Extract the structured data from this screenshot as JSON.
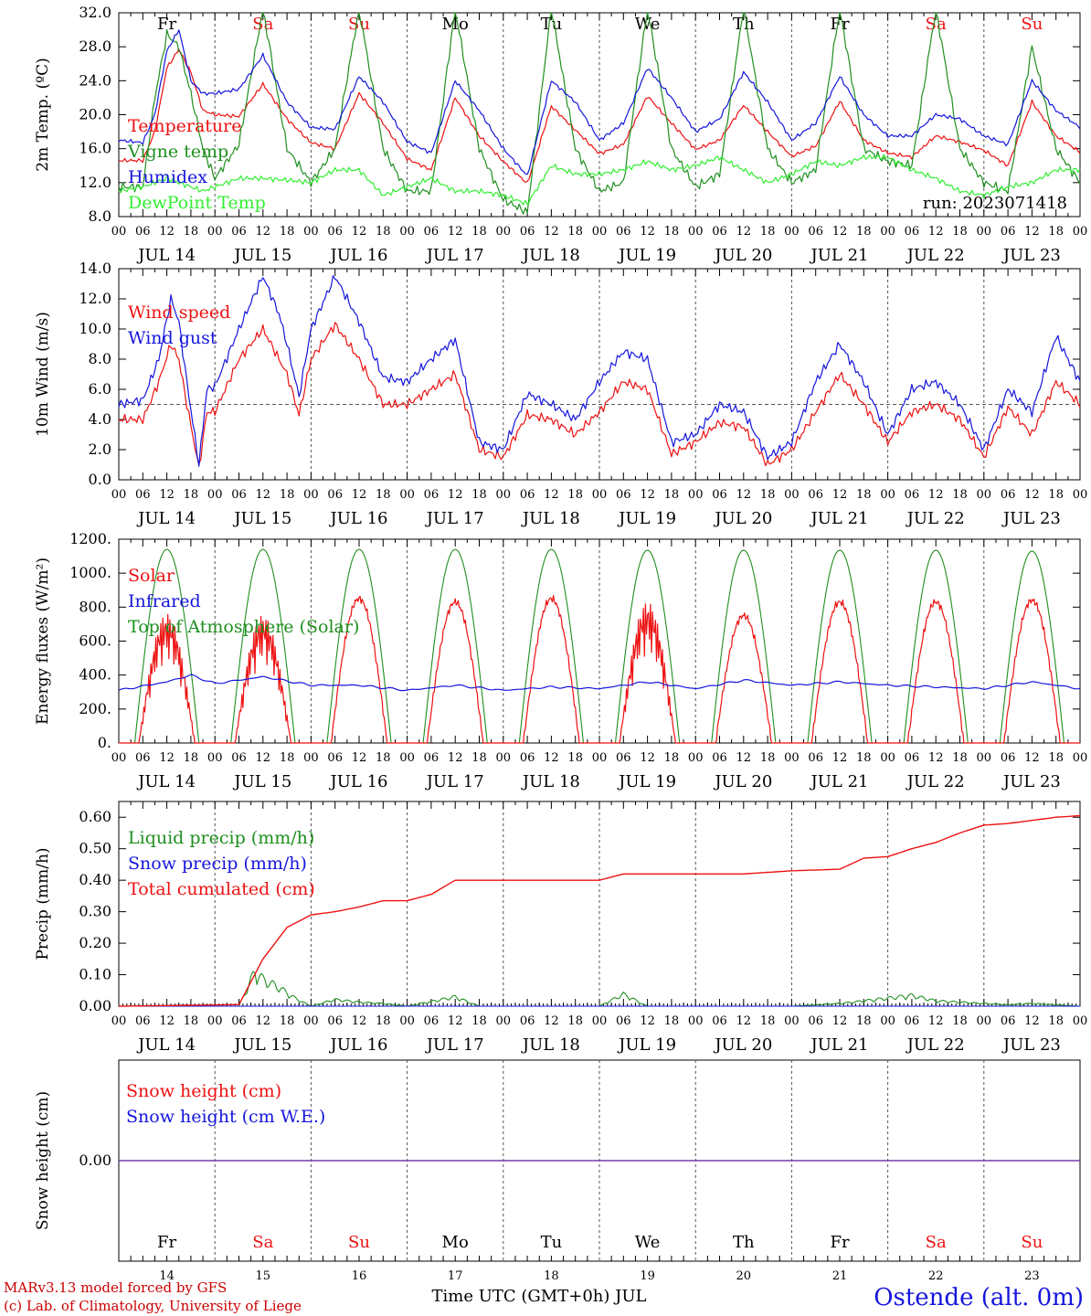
{
  "colors": {
    "red": "#ee1111",
    "green": "#1f8f1f",
    "blue": "#1515dd",
    "lime": "#33ee33",
    "purple": "#7a3aaa",
    "weekend": "#ee1111",
    "weekday": "#000000"
  },
  "weekdays": [
    {
      "label": "Fr",
      "weekend": false
    },
    {
      "label": "Sa",
      "weekend": true
    },
    {
      "label": "Su",
      "weekend": true
    },
    {
      "label": "Mo",
      "weekend": false
    },
    {
      "label": "Tu",
      "weekend": false
    },
    {
      "label": "We",
      "weekend": false
    },
    {
      "label": "Th",
      "weekend": false
    },
    {
      "label": "Fr",
      "weekend": false
    },
    {
      "label": "Sa",
      "weekend": true
    },
    {
      "label": "Su",
      "weekend": true
    }
  ],
  "dates": [
    "JUL 14",
    "JUL 15",
    "JUL 16",
    "JUL 17",
    "JUL 18",
    "JUL 19",
    "JUL 20",
    "JUL 21",
    "JUL 22",
    "JUL 23"
  ],
  "day_numbers": [
    "14",
    "15",
    "16",
    "17",
    "18",
    "19",
    "20",
    "21",
    "22",
    "23"
  ],
  "hour_labels": [
    "00",
    "06",
    "12",
    "18"
  ],
  "footer": {
    "model": "MARv3.13 model forced by GFS",
    "credit": "(c) Lab. of Climatology, University of Liege",
    "xlabel": "Time UTC (GMT+0h) JUL",
    "station": "Ostende (alt. 0m)"
  },
  "chart_data": [
    {
      "type": "line",
      "ylabel": "2m Temp. (ºC)",
      "ylim": [
        8.0,
        32.0
      ],
      "yticks": [
        "8.0",
        "12.0",
        "16.0",
        "20.0",
        "24.0",
        "28.0",
        "32.0"
      ],
      "annotation": "run: 2023071418",
      "x_unit": "hours since JUL 14 00 UTC",
      "x": [
        0,
        6,
        9,
        12,
        15,
        18,
        21,
        24,
        30,
        36,
        42,
        48,
        54,
        60,
        66,
        72,
        78,
        84,
        90,
        96,
        102,
        108,
        114,
        120,
        126,
        132,
        138,
        144,
        150,
        156,
        162,
        168,
        174,
        180,
        186,
        192,
        198,
        204,
        210,
        216,
        222,
        228,
        234,
        240
      ],
      "series": [
        {
          "name": "Temperature",
          "color": "red",
          "values": [
            14.6,
            14.6,
            18,
            25.5,
            27.7,
            25,
            20.5,
            20.0,
            19.8,
            23.6,
            19.5,
            16.7,
            16.0,
            22.5,
            19.0,
            14.8,
            13.5,
            22,
            17.5,
            14.5,
            11.9,
            21,
            18.2,
            15.4,
            16.5,
            22.2,
            19.0,
            15.9,
            17.0,
            21.1,
            18.0,
            15.1,
            16.3,
            21.6,
            17.0,
            15.5,
            15.0,
            17.5,
            16.8,
            15.8,
            14.0,
            21.5,
            17.5,
            15.6
          ]
        },
        {
          "name": "Vigne temp",
          "color": "green",
          "values": [
            11.5,
            11.5,
            22,
            29.5,
            28.0,
            22.5,
            16,
            12.5,
            16.5,
            32.5,
            16.0,
            12.0,
            16.0,
            32.5,
            16.0,
            11.0,
            11.0,
            32.5,
            16.0,
            10.0,
            8.5,
            32.5,
            16.0,
            11.0,
            12.0,
            32.5,
            16.0,
            11.5,
            13.0,
            32.5,
            16.0,
            12.0,
            13.5,
            32.5,
            16.0,
            14.5,
            14.0,
            32.5,
            16.0,
            12.0,
            11.0,
            28.0,
            16.0,
            12.0
          ]
        },
        {
          "name": "Humidex",
          "color": "blue",
          "values": [
            17.0,
            16.7,
            20,
            27.5,
            30.0,
            24,
            22.5,
            22.5,
            23.0,
            27.0,
            21.5,
            18.5,
            18.3,
            24.5,
            21.5,
            16.8,
            15.5,
            24.0,
            20.5,
            16.0,
            12.8,
            24.0,
            21.5,
            17.0,
            19.0,
            25.5,
            22.0,
            18.0,
            19.5,
            25.0,
            21.5,
            17.0,
            19.0,
            24.5,
            20.0,
            17.5,
            17.5,
            20.0,
            19.5,
            17.5,
            16.5,
            24.0,
            20.5,
            18.5
          ]
        },
        {
          "name": "DewPoint Temp",
          "color": "lime",
          "values": [
            11.0,
            11.5,
            12,
            12.5,
            12.0,
            11.5,
            11,
            11.5,
            12.5,
            12.5,
            12.3,
            12.0,
            13.5,
            13.5,
            10.5,
            11.5,
            12.5,
            11.0,
            11.0,
            10.5,
            9.5,
            14.0,
            13.0,
            13.0,
            13.5,
            14.5,
            13.5,
            14.0,
            15.0,
            13.5,
            12.0,
            13.0,
            14.5,
            14.0,
            15.0,
            15.0,
            13.5,
            12.5,
            11.0,
            10.5,
            11.5,
            12.0,
            13.5,
            13.5
          ]
        }
      ]
    },
    {
      "type": "line",
      "ylabel": "10m Wind (m/s)",
      "ylim": [
        0.0,
        14.0
      ],
      "yticks": [
        "0.0",
        "2.0",
        "4.0",
        "6.0",
        "8.0",
        "10.0",
        "12.0",
        "14.0"
      ],
      "reference_line": 5.0,
      "x_unit": "hours since JUL 14 00 UTC",
      "x": [
        0,
        6,
        10,
        13,
        15,
        17,
        20,
        22,
        24,
        30,
        36,
        40,
        42,
        45,
        48,
        54,
        60,
        66,
        72,
        78,
        84,
        90,
        96,
        102,
        108,
        114,
        120,
        126,
        132,
        138,
        144,
        150,
        156,
        162,
        168,
        174,
        180,
        186,
        192,
        198,
        204,
        210,
        216,
        222,
        228,
        234,
        240
      ],
      "series": [
        {
          "name": "Wind speed",
          "color": "red",
          "values": [
            4.0,
            4.0,
            6.5,
            9.0,
            8.0,
            5.0,
            0.8,
            4.5,
            4.5,
            8.0,
            10.0,
            8.0,
            7.0,
            4.3,
            8.0,
            10.3,
            8.0,
            5.0,
            5.0,
            6.0,
            7.0,
            2.0,
            1.5,
            4.3,
            4.0,
            3.0,
            4.5,
            6.5,
            6.0,
            1.7,
            2.5,
            3.8,
            3.5,
            1.0,
            2.0,
            4.5,
            7.0,
            5.0,
            2.5,
            4.5,
            5.0,
            4.0,
            1.5,
            4.8,
            3.0,
            6.5,
            5.0
          ]
        },
        {
          "name": "Wind gust",
          "color": "blue",
          "values": [
            5.0,
            5.3,
            8.0,
            12.0,
            10.5,
            6.5,
            1.0,
            6.0,
            6.2,
            10.0,
            13.5,
            11.0,
            9.0,
            5.5,
            10.0,
            13.5,
            10.5,
            6.8,
            6.5,
            8.0,
            9.3,
            2.5,
            2.0,
            5.7,
            5.0,
            4.0,
            6.5,
            8.5,
            8.0,
            2.5,
            3.0,
            5.0,
            4.5,
            1.5,
            2.5,
            6.5,
            9.0,
            6.5,
            3.0,
            6.0,
            6.5,
            5.0,
            2.0,
            6.0,
            4.5,
            9.5,
            6.5
          ]
        }
      ]
    },
    {
      "type": "line",
      "ylabel": "Energy fluxes (W/m²)",
      "ylim": [
        0,
        1200
      ],
      "yticks": [
        "0.",
        "200.",
        "400.",
        "600.",
        "800.",
        "1000.",
        "1200."
      ],
      "x_unit": "hours since JUL 14 00 UTC",
      "series": [
        {
          "name": "Solar",
          "color": "red",
          "daily_peak": [
            760,
            750,
            850,
            830,
            850,
            830,
            750,
            830,
            830,
            840
          ]
        },
        {
          "name": "Infrared",
          "color": "blue",
          "x": [
            0,
            12,
            18,
            24,
            36,
            48,
            60,
            72,
            84,
            96,
            108,
            120,
            132,
            144,
            156,
            168,
            180,
            192,
            204,
            216,
            228,
            240
          ],
          "values": [
            310,
            360,
            400,
            350,
            390,
            340,
            340,
            310,
            340,
            310,
            330,
            320,
            360,
            320,
            370,
            340,
            360,
            340,
            330,
            320,
            360,
            320
          ]
        },
        {
          "name": "Top of Atmosphere (Solar)",
          "color": "green",
          "daily_peak": [
            1140,
            1140,
            1140,
            1140,
            1140,
            1135,
            1135,
            1135,
            1135,
            1130
          ]
        }
      ]
    },
    {
      "type": "line",
      "ylabel": "Precip (mm/h)",
      "ylim": [
        0.0,
        0.65
      ],
      "yticks": [
        "0.00",
        "0.10",
        "0.20",
        "0.30",
        "0.40",
        "0.50",
        "0.60"
      ],
      "x_unit": "hours since JUL 14 00 UTC",
      "series": [
        {
          "name": "Liquid precip (mm/h)",
          "color": "green",
          "x": [
            0,
            30,
            34,
            36,
            40,
            44,
            48,
            54,
            60,
            66,
            72,
            84,
            90,
            96,
            120,
            126,
            132,
            168,
            180,
            186,
            198,
            204,
            216,
            222,
            228,
            240
          ],
          "values": [
            0,
            0,
            0.13,
            0.1,
            0.07,
            0.03,
            0,
            0.025,
            0.015,
            0.01,
            0,
            0.035,
            0,
            0,
            0,
            0.045,
            0,
            0,
            0.01,
            0.02,
            0.04,
            0.02,
            0.01,
            0.005,
            0.01,
            0
          ]
        },
        {
          "name": "Snow precip (mm/h)",
          "color": "blue",
          "x": [
            0,
            240
          ],
          "values": [
            0,
            0
          ]
        },
        {
          "name": "Total cumulated (cm)",
          "color": "red",
          "x": [
            0,
            30,
            36,
            42,
            48,
            54,
            60,
            66,
            72,
            78,
            84,
            90,
            96,
            108,
            120,
            126,
            132,
            144,
            156,
            168,
            180,
            186,
            192,
            198,
            204,
            210,
            216,
            222,
            228,
            234,
            240
          ],
          "values": [
            0,
            0.005,
            0.15,
            0.25,
            0.29,
            0.3,
            0.315,
            0.335,
            0.335,
            0.355,
            0.4,
            0.4,
            0.4,
            0.4,
            0.4,
            0.42,
            0.42,
            0.42,
            0.42,
            0.43,
            0.435,
            0.47,
            0.475,
            0.5,
            0.52,
            0.55,
            0.575,
            0.58,
            0.59,
            0.6,
            0.605
          ]
        }
      ]
    },
    {
      "type": "line",
      "ylabel": "Snow height (cm)",
      "ylim": [
        -1,
        1
      ],
      "yticks": [
        "0.00"
      ],
      "x_unit": "hours since JUL 14 00 UTC",
      "x": [
        0,
        240
      ],
      "series": [
        {
          "name": "Snow height (cm)",
          "color": "red",
          "values": [
            0,
            0
          ]
        },
        {
          "name": "Snow height (cm W.E.)",
          "color": "blue",
          "values": [
            0,
            0
          ]
        }
      ]
    }
  ]
}
